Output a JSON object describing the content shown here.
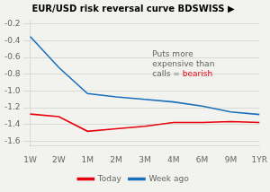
{
  "chart_data": {
    "type": "line",
    "title": "EUR/USD risk reversal curve BDSWISS ▶",
    "categories": [
      "1W",
      "2W",
      "1M",
      "2M",
      "3M",
      "4M",
      "6M",
      "9M",
      "1YR"
    ],
    "series": [
      {
        "name": "Today",
        "color": "#e8000d",
        "values": [
          -1.275,
          -1.305,
          -1.48,
          -1.45,
          -1.42,
          -1.375,
          -1.375,
          -1.365,
          -1.375
        ]
      },
      {
        "name": "Week ago",
        "color": "#1a6fbb",
        "values": [
          -0.35,
          -0.72,
          -1.03,
          -1.07,
          -1.1,
          -1.13,
          -1.18,
          -1.25,
          -1.28
        ]
      }
    ],
    "ylim": [
      -1.65,
      -0.15
    ],
    "yticks": [
      -0.2,
      -0.4,
      -0.6,
      -0.8,
      {
        "value": -1.0,
        "label": "-1.0"
      },
      -1.2,
      -1.4,
      -1.6
    ],
    "grid": true,
    "legend": "bottom",
    "annotations": [
      {
        "text": "Puts more\nexpensive than\ncalls = ",
        "color": "#606060"
      },
      {
        "text": "bearish",
        "color": "#e8000d"
      }
    ]
  }
}
